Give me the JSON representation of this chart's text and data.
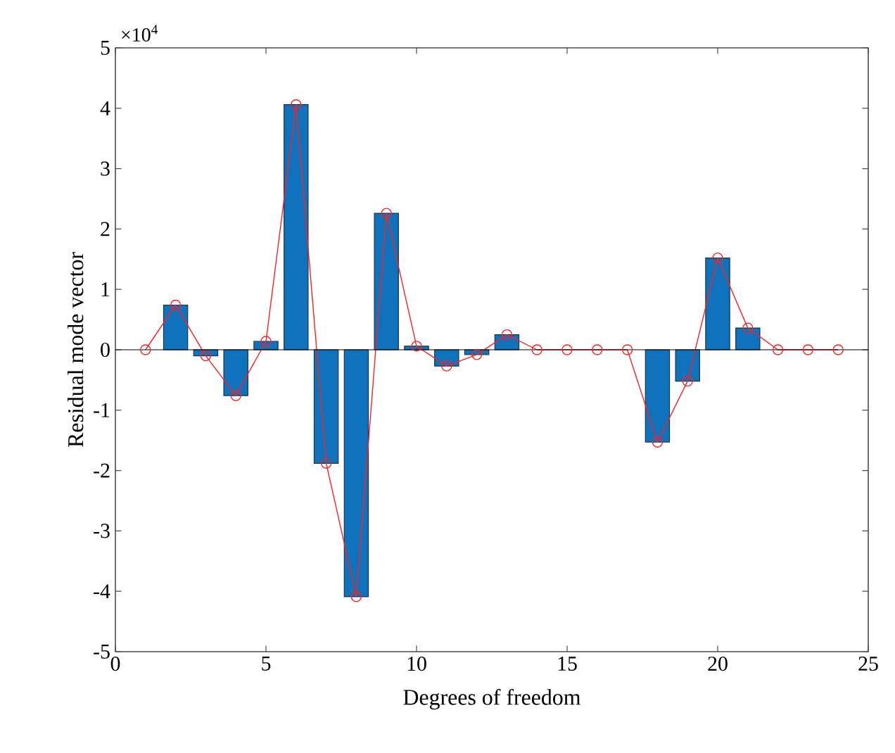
{
  "chart_data": {
    "type": "bar",
    "xlabel": "Degrees of freedom",
    "ylabel": "Residual mode vector",
    "annotations": [
      "×10$^{4}$"
    ],
    "x": [
      1,
      2,
      3,
      4,
      5,
      6,
      7,
      8,
      9,
      10,
      11,
      12,
      13,
      14,
      15,
      16,
      17,
      18,
      19,
      20,
      21,
      22,
      23,
      24
    ],
    "series": [
      {
        "color": "#0f72bd",
        "values": [
          0,
          0.74,
          -0.1,
          -0.76,
          0.14,
          4.06,
          -1.88,
          -4.09,
          2.26,
          0.06,
          -0.27,
          -0.08,
          0.25,
          0,
          0,
          0,
          0,
          -1.53,
          -0.52,
          1.52,
          0.36,
          0,
          0,
          0
        ]
      },
      {
        "type": "line",
        "color": "#ff2020",
        "marker": "circle",
        "values": [
          0,
          0.74,
          -0.1,
          -0.76,
          0.14,
          4.06,
          -1.88,
          -4.09,
          2.26,
          0.06,
          -0.27,
          -0.08,
          0.25,
          0,
          0,
          0,
          0,
          -1.53,
          -0.52,
          1.52,
          0.36,
          0,
          0,
          0
        ]
      }
    ],
    "xlim": [
      0,
      25
    ],
    "xticks": [
      0,
      5,
      10,
      15,
      20,
      25
    ],
    "ylim": [
      -5,
      5
    ],
    "yticks": [
      -5,
      -4,
      -3,
      -2,
      -1,
      0,
      1,
      2,
      3,
      4,
      5
    ],
    "ref_lines": [
      {
        "axis": "y",
        "value": 0,
        "color": "#000000"
      }
    ],
    "grid": false
  }
}
